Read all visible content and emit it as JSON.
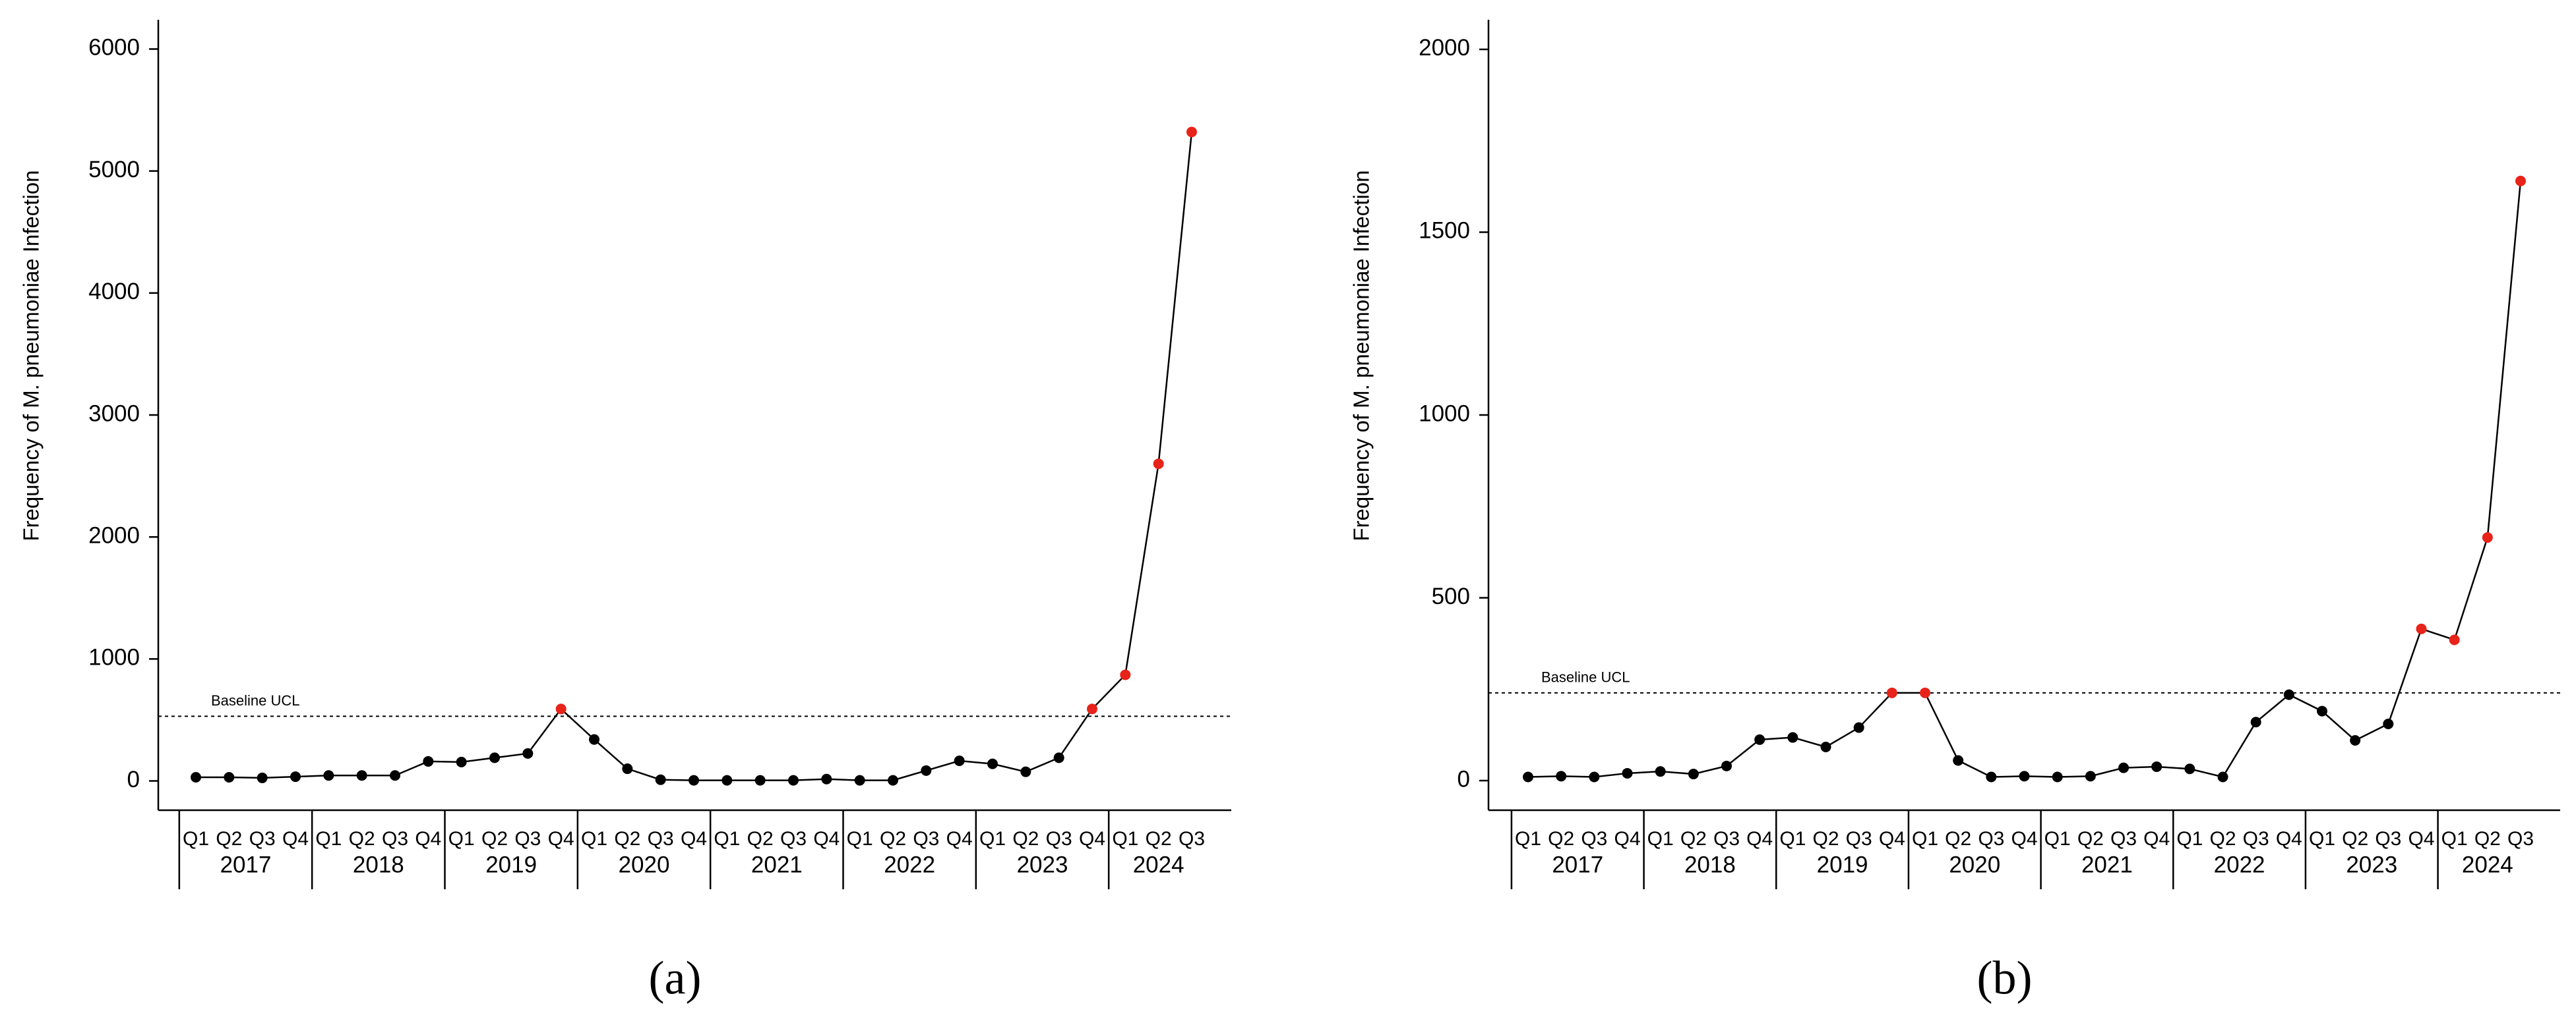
{
  "chart_data": [
    {
      "type": "line",
      "caption": "(a)",
      "y_label": "Frequency of M. pneumoniae Infection",
      "categories": [
        "Q1",
        "Q2",
        "Q3",
        "Q4",
        "Q1",
        "Q2",
        "Q3",
        "Q4",
        "Q1",
        "Q2",
        "Q3",
        "Q4",
        "Q1",
        "Q2",
        "Q3",
        "Q4",
        "Q1",
        "Q2",
        "Q3",
        "Q4",
        "Q1",
        "Q2",
        "Q3",
        "Q4",
        "Q1",
        "Q2",
        "Q3",
        "Q4",
        "Q1",
        "Q2",
        "Q3"
      ],
      "years": [
        "2017",
        "2018",
        "2019",
        "2020",
        "2021",
        "2022",
        "2023",
        "2024"
      ],
      "series": [
        {
          "color": "#000000",
          "values": [
            30,
            30,
            25,
            35,
            45,
            45,
            45,
            160,
            155,
            190,
            225,
            590,
            340,
            100,
            10,
            5,
            5,
            5,
            5,
            15,
            5,
            5,
            85,
            165,
            140,
            75,
            190,
            590,
            870,
            2600,
            5320
          ],
          "marker_colors": [
            "#000000",
            "#000000",
            "#000000",
            "#000000",
            "#000000",
            "#000000",
            "#000000",
            "#000000",
            "#000000",
            "#000000",
            "#000000",
            "#e8231a",
            "#000000",
            "#000000",
            "#000000",
            "#000000",
            "#000000",
            "#000000",
            "#000000",
            "#000000",
            "#000000",
            "#000000",
            "#000000",
            "#000000",
            "#000000",
            "#000000",
            "#000000",
            "#e8231a",
            "#e8231a",
            "#e8231a",
            "#e8231a"
          ]
        }
      ],
      "reference_line": {
        "label": "Baseline UCL",
        "value": 530
      },
      "ylim": [
        -240,
        6240
      ],
      "yticks": [
        0,
        1000,
        2000,
        3000,
        4000,
        5000,
        6000
      ]
    },
    {
      "type": "line",
      "caption": "(b)",
      "y_label": "Frequency of M. pneumoniae Infection",
      "categories": [
        "Q1",
        "Q2",
        "Q3",
        "Q4",
        "Q1",
        "Q2",
        "Q3",
        "Q4",
        "Q1",
        "Q2",
        "Q3",
        "Q4",
        "Q1",
        "Q2",
        "Q3",
        "Q4",
        "Q1",
        "Q2",
        "Q3",
        "Q4",
        "Q1",
        "Q2",
        "Q3",
        "Q4",
        "Q1",
        "Q2",
        "Q3",
        "Q4",
        "Q1",
        "Q2",
        "Q3"
      ],
      "years": [
        "2017",
        "2018",
        "2019",
        "2020",
        "2021",
        "2022",
        "2023",
        "2024"
      ],
      "series": [
        {
          "color": "#000000",
          "values": [
            10,
            12,
            10,
            20,
            25,
            18,
            40,
            112,
            118,
            92,
            145,
            240,
            240,
            55,
            10,
            12,
            10,
            12,
            35,
            38,
            32,
            10,
            160,
            235,
            190,
            110,
            155,
            415,
            385,
            665,
            1640
          ],
          "marker_colors": [
            "#000000",
            "#000000",
            "#000000",
            "#000000",
            "#000000",
            "#000000",
            "#000000",
            "#000000",
            "#000000",
            "#000000",
            "#000000",
            "#e8231a",
            "#e8231a",
            "#000000",
            "#000000",
            "#000000",
            "#000000",
            "#000000",
            "#000000",
            "#000000",
            "#000000",
            "#000000",
            "#000000",
            "#000000",
            "#000000",
            "#000000",
            "#000000",
            "#e8231a",
            "#e8231a",
            "#e8231a",
            "#e8231a"
          ]
        }
      ],
      "reference_line": {
        "label": "Baseline UCL",
        "value": 240
      },
      "ylim": [
        -81,
        2081
      ],
      "yticks": [
        0,
        500,
        1000,
        1500,
        2000
      ]
    }
  ]
}
